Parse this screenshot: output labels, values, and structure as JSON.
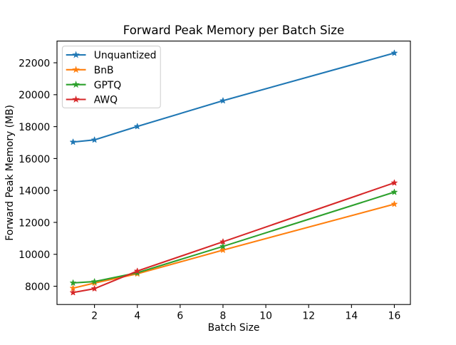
{
  "chart_data": {
    "type": "line",
    "title": "Forward Peak Memory per Batch Size",
    "xlabel": "Batch Size",
    "ylabel": "Forward Peak Memory (MB)",
    "x": [
      1,
      2,
      4,
      8,
      16
    ],
    "series": [
      {
        "name": "Unquantized",
        "color": "#1f77b4",
        "values": [
          17035,
          17170,
          18010,
          19625,
          22610
        ]
      },
      {
        "name": "BnB",
        "color": "#ff7f0e",
        "values": [
          7880,
          8200,
          8780,
          10265,
          13145
        ]
      },
      {
        "name": "GPTQ",
        "color": "#2ca02c",
        "values": [
          8210,
          8290,
          8845,
          10495,
          13895
        ]
      },
      {
        "name": "AWQ",
        "color": "#d62728",
        "values": [
          7605,
          7850,
          8950,
          10785,
          14480
        ]
      }
    ],
    "xlim": [
      0.25,
      16.75
    ],
    "ylim": [
      6855,
      23360
    ],
    "xticks": [
      2,
      4,
      6,
      8,
      10,
      12,
      14,
      16
    ],
    "yticks": [
      8000,
      10000,
      12000,
      14000,
      16000,
      18000,
      20000,
      22000
    ],
    "marker": "star",
    "grid": false,
    "legend": {
      "position": "upper-left"
    },
    "colors": {
      "spine": "#000000",
      "legend_border": "#cccccc",
      "background": "#ffffff"
    }
  }
}
